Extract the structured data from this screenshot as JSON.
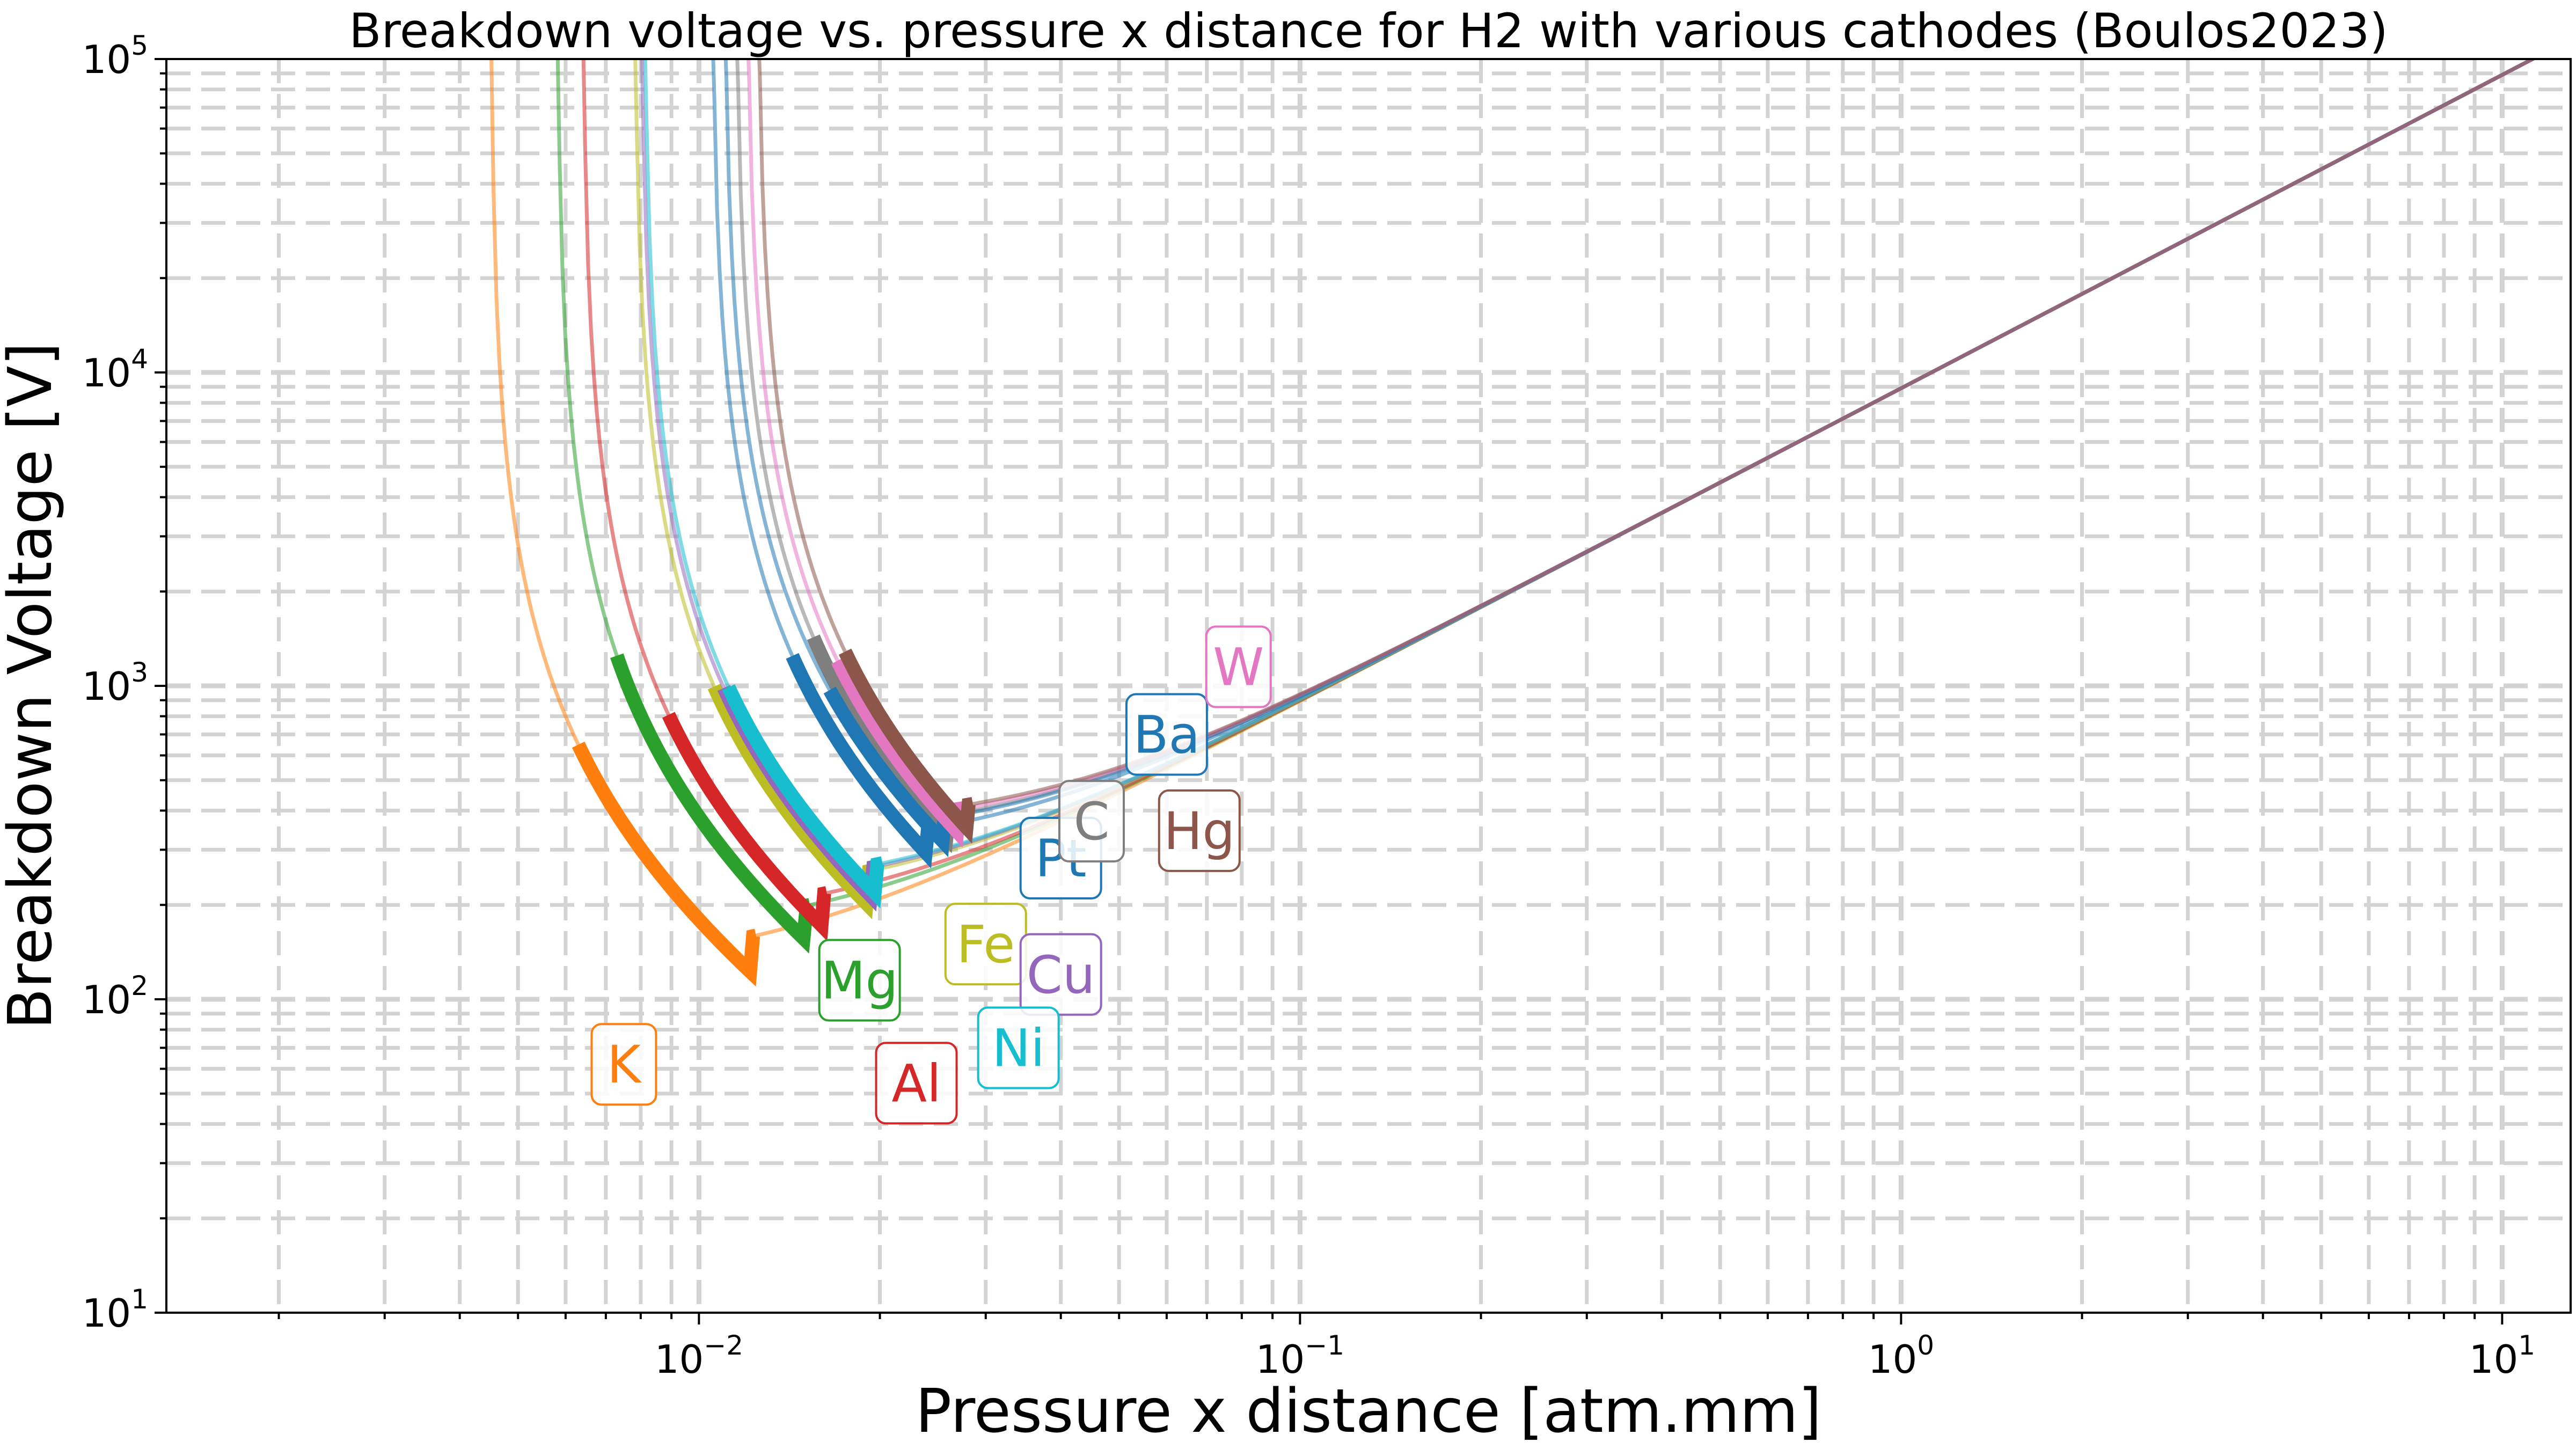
{
  "chart_data": {
    "type": "line",
    "title": "Breakdown voltage vs. pressure x distance for H2 with various cathodes (Boulos2023)",
    "xlabel": "Pressure x distance [atm.mm]",
    "ylabel": "Breakdown Voltage [V]",
    "xscale": "log",
    "yscale": "log",
    "xlim": [
      0.0013,
      13
    ],
    "ylim": [
      10,
      100000
    ],
    "grid": true,
    "x_ticks": [
      {
        "base": "10",
        "exp": "−2",
        "value": 0.01
      },
      {
        "base": "10",
        "exp": "−1",
        "value": 0.1
      },
      {
        "base": "10",
        "exp": "0",
        "value": 1
      },
      {
        "base": "10",
        "exp": "1",
        "value": 10
      }
    ],
    "y_ticks": [
      {
        "base": "10",
        "exp": "1",
        "value": 10
      },
      {
        "base": "10",
        "exp": "2",
        "value": 100
      },
      {
        "base": "10",
        "exp": "3",
        "value": 1000
      },
      {
        "base": "10",
        "exp": "4",
        "value": 10000
      },
      {
        "base": "10",
        "exp": "5",
        "value": 100000
      }
    ],
    "paschen_slope_B": 8900,
    "series": [
      {
        "name": "K",
        "color": "#ff7f0e",
        "pd_asymptote": 0.0045,
        "pd_min": 0.0122,
        "v_min": 122,
        "highlight_start": 0.0063,
        "label_pos": [
          0.0075,
          62
        ]
      },
      {
        "name": "Mg",
        "color": "#2ca02c",
        "pd_asymptote": 0.0058,
        "pd_min": 0.015,
        "v_min": 155,
        "highlight_start": 0.0073,
        "label_pos": [
          0.0185,
          115
        ]
      },
      {
        "name": "Al",
        "color": "#d62728",
        "pd_asymptote": 0.0064,
        "pd_min": 0.016,
        "v_min": 172,
        "highlight_start": 0.0089,
        "label_pos": [
          0.023,
          54
        ]
      },
      {
        "name": "Fe",
        "color": "#bcbd22",
        "pd_asymptote": 0.0078,
        "pd_min": 0.019,
        "v_min": 202,
        "highlight_start": 0.0106,
        "label_pos": [
          0.03,
          150
        ]
      },
      {
        "name": "Cu",
        "color": "#9467bd",
        "pd_asymptote": 0.008,
        "pd_min": 0.0195,
        "v_min": 210,
        "highlight_start": 0.011,
        "label_pos": [
          0.04,
          120
        ]
      },
      {
        "name": "Ni",
        "color": "#17becf",
        "pd_asymptote": 0.0081,
        "pd_min": 0.0198,
        "v_min": 215,
        "highlight_start": 0.0112,
        "label_pos": [
          0.034,
          70
        ]
      },
      {
        "name": "Pt",
        "color": "#1f77b4",
        "pd_asymptote": 0.0105,
        "pd_min": 0.024,
        "v_min": 290,
        "highlight_start": 0.0143,
        "label_pos": [
          0.04,
          282
        ]
      },
      {
        "name": "C",
        "color": "#7f7f7f",
        "pd_asymptote": 0.0115,
        "pd_min": 0.026,
        "v_min": 325,
        "highlight_start": 0.0155,
        "label_pos": [
          0.045,
          370
        ]
      },
      {
        "name": "Ba",
        "color": "#1f77b4",
        "pd_asymptote": 0.011,
        "pd_min": 0.0255,
        "v_min": 318,
        "highlight_start": 0.0165,
        "label_pos": [
          0.06,
          700
        ]
      },
      {
        "name": "W",
        "color": "#e377c2",
        "pd_asymptote": 0.012,
        "pd_min": 0.027,
        "v_min": 340,
        "highlight_start": 0.017,
        "label_pos": [
          0.079,
          1150
        ]
      },
      {
        "name": "Hg",
        "color": "#8c564b",
        "pd_asymptote": 0.0125,
        "pd_min": 0.028,
        "v_min": 350,
        "highlight_start": 0.0175,
        "label_pos": [
          0.068,
          345
        ]
      }
    ]
  }
}
